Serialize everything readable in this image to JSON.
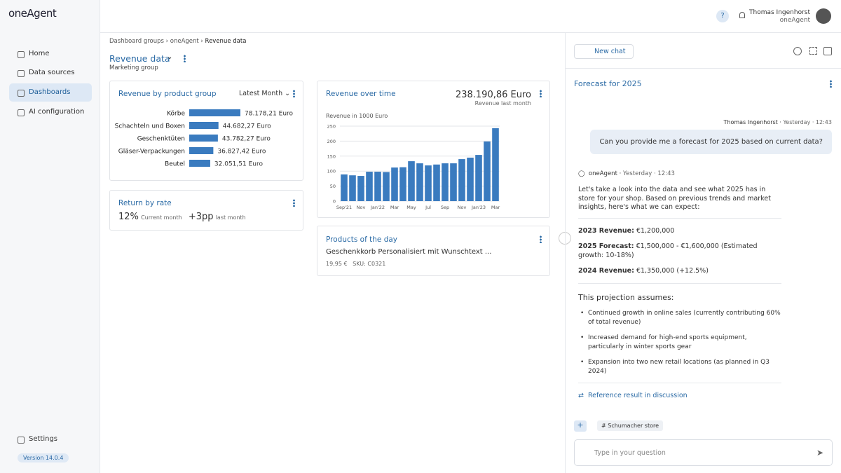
{
  "app": {
    "logo": "oneAgent",
    "version": "Version 14.0.4"
  },
  "nav": {
    "items": [
      "Home",
      "Data sources",
      "Dashboards",
      "AI configuration"
    ],
    "settings": "Settings"
  },
  "user": {
    "help": "?",
    "name": "Thomas Ingenhorst",
    "org": "oneAgent"
  },
  "breadcrumb": [
    "Dashboard groups",
    "oneAgent",
    "Revenue data"
  ],
  "dashboard": {
    "title": "Revenue data",
    "subtitle": "Marketing group"
  },
  "widgets": {
    "product_group": {
      "title": "Revenue by product group",
      "filter": "Latest Month",
      "chart_data": {
        "type": "bar",
        "orientation": "horizontal",
        "color": "#3a7bbf",
        "categories": [
          "Körbe",
          "Schachteln und Boxen",
          "Geschenktüten",
          "Gläser-Verpackungen",
          "Beutel"
        ],
        "values": [
          78178.21,
          44682.27,
          43782.27,
          36827.42,
          32051.51
        ],
        "value_labels": [
          "78.178,21 Euro",
          "44.682,27 Euro",
          "43.782,27 Euro",
          "36.827,42 Euro",
          "32.051,51 Euro"
        ]
      }
    },
    "return_rate": {
      "title": "Return by rate",
      "value": "12%",
      "value_caption": "Current month",
      "change": "+3pp",
      "change_caption": "last month"
    },
    "revenue_time": {
      "title": "Revenue over time",
      "total": "238.190,86 Euro",
      "total_caption": "Revenue last month",
      "chart_data": {
        "type": "bar",
        "y_label": "Revenue in 1000 Euro",
        "color": "#3a7bbf",
        "grid": true,
        "categories": [
          "Sep'21",
          null,
          "Nov",
          null,
          "Jan'22",
          null,
          "Mar",
          null,
          "May",
          null,
          "Jul",
          null,
          "Sep",
          null,
          "Nov",
          null,
          "Jan'23",
          null,
          "Mar"
        ],
        "values": [
          89,
          86,
          84,
          98,
          98,
          97,
          112,
          113,
          133,
          126,
          119,
          122,
          126,
          126,
          140,
          145,
          154,
          199,
          243
        ],
        "ylim": [
          0,
          250
        ],
        "yticks": [
          0,
          50,
          100,
          150,
          200,
          250
        ]
      }
    },
    "products": {
      "title": "Products of the day",
      "name": "Geschenkkorb Personalisiert mit Wunschtext ...",
      "price": "19,95 €",
      "sku": "SKU: C0321"
    }
  },
  "chat": {
    "new_chat": "New chat",
    "title": "Forecast for 2025",
    "user_message": {
      "author": "Thomas Ingenhorst",
      "time": "Yesterday · 12:43",
      "text": "Can you provide me a forecast for 2025 based on current data?"
    },
    "agent_message": {
      "author": "oneAgent",
      "time": "Yesterday · 12:43",
      "intro": "Let's take a look into the data and see what 2025 has in store for your shop. Based on previous trends and market insights, here's what we can expect:",
      "figures": [
        {
          "label": "2023 Revenue:",
          "value": "€1,200,000"
        },
        {
          "label": "2025 Forecast:",
          "value": "€1,500,000 - €1,600,000 (Estimated growth: 10-18%)"
        },
        {
          "label": "2024 Revenue:",
          "value": "€1,350,000 (+12.5%)"
        }
      ],
      "assumptions_title": "This projection assumes:",
      "assumptions": [
        "Continued growth in online sales (currently contributing 60% of total revenue)",
        "Increased demand for high-end sports equipment, particularly in winter sports gear",
        "Expansion into two new retail locations (as planned in Q3 2024)"
      ],
      "reference": "Reference result in discussion"
    },
    "plus": "+",
    "context_tag": "Schumacher store",
    "input_placeholder": "Type in your question"
  }
}
